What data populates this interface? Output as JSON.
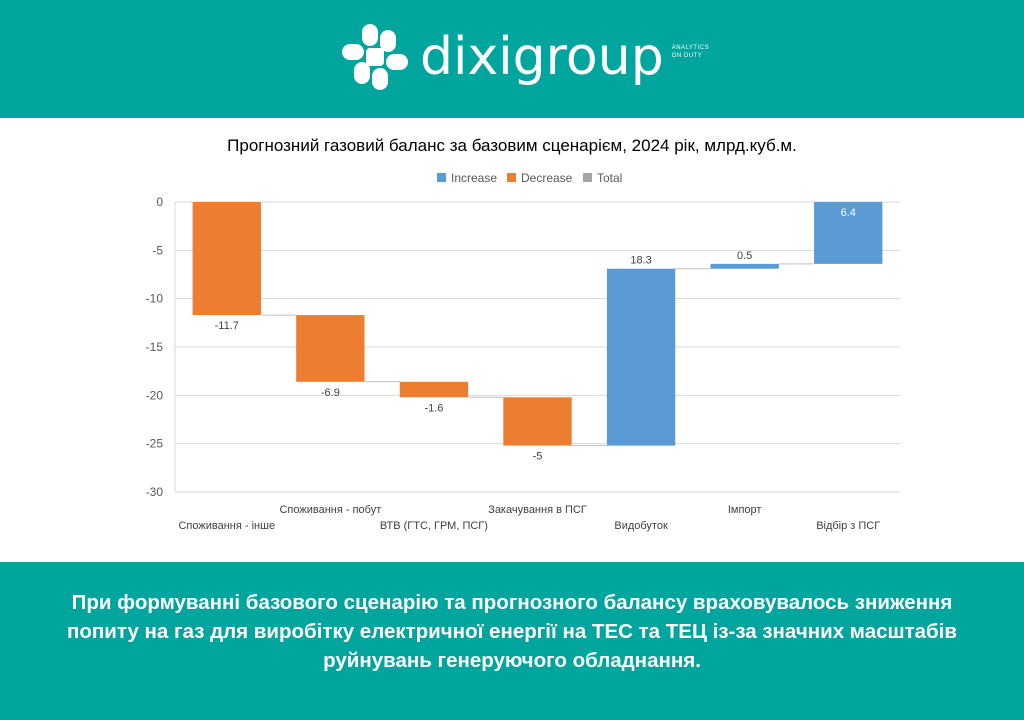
{
  "header": {
    "brand": "dixigroup",
    "tagline_line1": "ANALYTICS",
    "tagline_line2": "ON DUTY"
  },
  "colors": {
    "teal": "#00a59e",
    "increase": "#5b9bd5",
    "decrease": "#ed7d31",
    "total": "#a5a5a5"
  },
  "chart_data": {
    "type": "waterfall",
    "title": "Прогнозний газовий баланс за базовим сценарієм, 2024 рік, млрд.куб.м.",
    "legend": [
      "Increase",
      "Decrease",
      "Total"
    ],
    "legend_position": "top",
    "categories": [
      "Споживання - інше",
      "Споживання - побут",
      "ВТВ (ГТС, ГРМ, ПСГ)",
      "Закачування в ПСГ",
      "Видобуток",
      "Імпорт",
      "Відбір з ПСГ"
    ],
    "values": [
      -11.7,
      -6.9,
      -1.6,
      -5,
      18.3,
      0.5,
      6.4
    ],
    "data_labels": [
      "-11.7",
      "-6.9",
      "-1.6",
      "-5",
      "18.3",
      "0.5",
      "6.4"
    ],
    "ylim": [
      -30,
      0
    ],
    "yticks": [
      0,
      -5,
      -10,
      -15,
      -20,
      -25,
      -30
    ],
    "grid": true
  },
  "footer": {
    "line1": "При формуванні базового сценарію та прогнозного балансу враховувалось зниження",
    "line2": "попиту на газ для виробітку електричної енергії на ТЕС та ТЕЦ із-за значних масштабів",
    "line3": "руйнувань генеруючого обладнання."
  }
}
